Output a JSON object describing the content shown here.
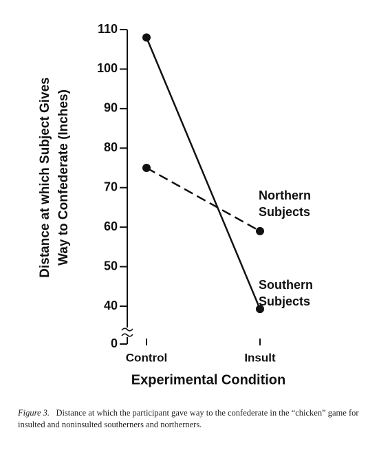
{
  "chart_data": {
    "type": "line",
    "ylabel": [
      "Distance at which Subject Gives",
      "Way to Confederate (Inches)"
    ],
    "xlabel": "Experimental Condition",
    "categories": [
      "Control",
      "Insult"
    ],
    "series": [
      {
        "name": "Southern Subjects",
        "color": "#111111",
        "dash": "solid",
        "values": [
          108,
          37
        ]
      },
      {
        "name": "Northern Subjects",
        "color": "#111111",
        "dash": "dashed",
        "values": [
          75,
          59
        ]
      }
    ],
    "ylim": [
      0,
      110
    ],
    "yticks": [
      0,
      40,
      50,
      60,
      70,
      80,
      90,
      100,
      110
    ],
    "y_break": [
      0,
      40
    ],
    "caption": {
      "label": "Figure 3.",
      "text": "Distance at which the participant gave way to the confederate in the “chicken” game for insulted and noninsulted southerners and northerners."
    }
  }
}
